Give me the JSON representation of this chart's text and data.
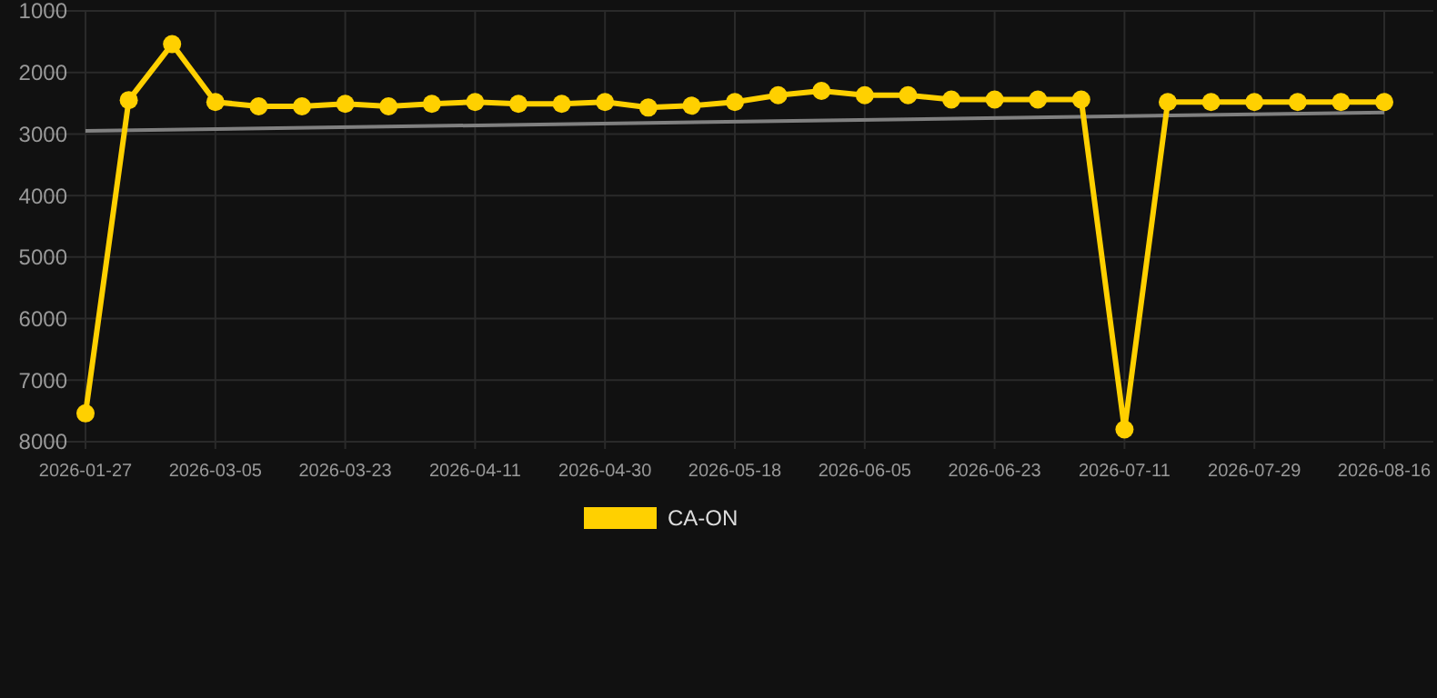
{
  "chart_data": {
    "type": "line",
    "categories": [
      "2026-01-27",
      null,
      null,
      "2026-03-05",
      null,
      null,
      "2026-03-23",
      null,
      null,
      "2026-04-11",
      null,
      null,
      "2026-04-30",
      null,
      null,
      "2026-05-18",
      null,
      null,
      "2026-06-05",
      null,
      null,
      "2026-06-23",
      null,
      null,
      "2026-07-11",
      null,
      null,
      "2026-07-29",
      null,
      null,
      "2026-08-16"
    ],
    "series": [
      {
        "name": "CA-ON",
        "color": "#ffd000",
        "marker": "circle",
        "values": [
          7540,
          2450,
          1540,
          2480,
          2550,
          2550,
          2510,
          2550,
          2510,
          2480,
          2510,
          2510,
          2480,
          2570,
          2540,
          2480,
          2370,
          2300,
          2370,
          2370,
          2440,
          2440,
          2440,
          2440,
          7800,
          2480,
          2480,
          2480,
          2480,
          2480,
          2480
        ]
      },
      {
        "color": "#808080",
        "marker": "none",
        "values": [
          2950,
          null,
          null,
          null,
          null,
          null,
          null,
          null,
          null,
          null,
          null,
          null,
          null,
          null,
          null,
          null,
          null,
          null,
          null,
          null,
          null,
          null,
          null,
          null,
          null,
          null,
          null,
          null,
          null,
          null,
          2650
        ]
      }
    ],
    "ylim": [
      8000,
      1000
    ],
    "yticks": [
      1000,
      2000,
      3000,
      4000,
      5000,
      6000,
      7000,
      8000
    ],
    "grid": true,
    "legend": "bottom",
    "line_style": "solid"
  }
}
